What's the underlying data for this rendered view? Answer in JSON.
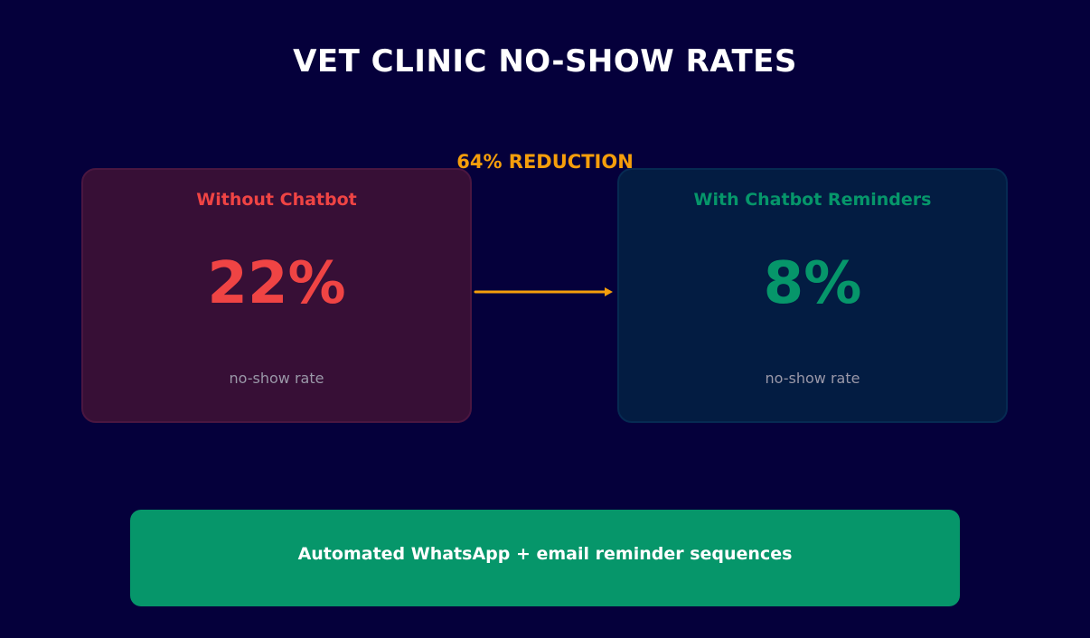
{
  "title": "VET CLINIC NO-SHOW RATES",
  "reduction_label": "64% REDUCTION",
  "cards": [
    {
      "title": "Without Chatbot",
      "value": "22%",
      "caption": "no-show rate",
      "color": "#ef4444"
    },
    {
      "title": "With Chatbot Reminders",
      "value": "8%",
      "caption": "no-show rate",
      "color": "#06966a"
    }
  ],
  "arrow_color": "#f59e0b",
  "banner": {
    "text": "Automated WhatsApp + email reminder sequences",
    "color": "#06966a"
  }
}
